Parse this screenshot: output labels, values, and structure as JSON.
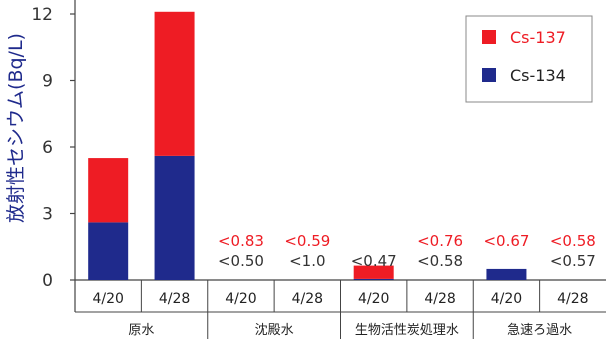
{
  "chart_data": {
    "type": "bar",
    "stacked": true,
    "ylabel": "放射性セシウム(Bq/L)",
    "ylim": [
      0,
      12
    ],
    "yticks": [
      0,
      3,
      6,
      9,
      12
    ],
    "grid": false,
    "legend_position": "top-right",
    "categories": [
      "4/20",
      "4/28",
      "4/20",
      "4/28",
      "4/20",
      "4/28",
      "4/20",
      "4/28"
    ],
    "groups": [
      {
        "label": "原水",
        "span": [
          0,
          1
        ]
      },
      {
        "label": "沈殿水",
        "span": [
          2,
          3
        ]
      },
      {
        "label": "生物活性炭処理水",
        "span": [
          4,
          5
        ]
      },
      {
        "label": "急速ろ過水",
        "span": [
          6,
          7
        ]
      }
    ],
    "series": [
      {
        "name": "Cs-134",
        "color": "#1f2a8c",
        "values": [
          2.6,
          5.6,
          0,
          0,
          0.05,
          0,
          0.5,
          0
        ]
      },
      {
        "name": "Cs-137",
        "color": "#ee1c24",
        "values": [
          2.9,
          6.5,
          0,
          0,
          0.6,
          0,
          0,
          0
        ]
      }
    ],
    "legend_order": [
      "Cs-137",
      "Cs-134"
    ],
    "annotations": [
      {
        "category_index": 2,
        "cs137": "<0.83",
        "cs134": "<0.50"
      },
      {
        "category_index": 3,
        "cs137": "<0.59",
        "cs134": "<1.0"
      },
      {
        "category_index": 4,
        "cs137": "",
        "cs134": "<0.47"
      },
      {
        "category_index": 5,
        "cs137": "<0.76",
        "cs134": "<0.58"
      },
      {
        "category_index": 6,
        "cs137": "<0.67",
        "cs134": ""
      },
      {
        "category_index": 7,
        "cs137": "<0.58",
        "cs134": "<0.57"
      }
    ],
    "colors": {
      "cs137_text": "#ee1c24",
      "cs134_text": "#333333",
      "axis": "#444444",
      "ylabel": "#1f2a8c"
    }
  }
}
